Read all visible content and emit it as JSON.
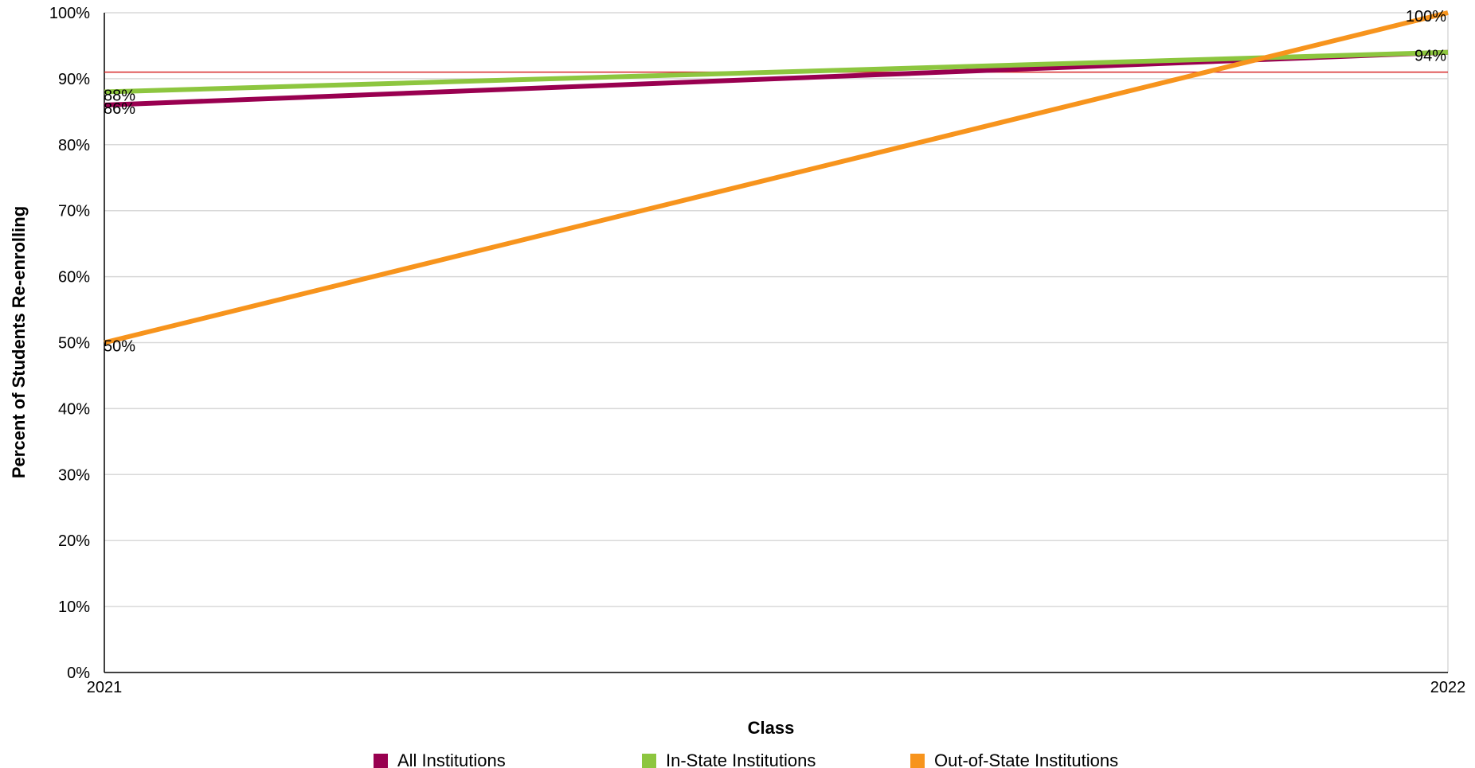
{
  "chart_data": {
    "type": "line",
    "xlabel": "Class",
    "ylabel": "Percent of Students Re-enrolling",
    "x": [
      "2021",
      "2022"
    ],
    "ylim": [
      0,
      100
    ],
    "yticks": [
      0,
      10,
      20,
      30,
      40,
      50,
      60,
      70,
      80,
      90,
      100
    ],
    "ytick_suffix": "%",
    "grid": true,
    "legend_position": "bottom",
    "reference_line": {
      "value": 91,
      "color": "#d62728"
    },
    "series": [
      {
        "name": "All Institutions",
        "color": "#990050",
        "values": [
          86,
          94
        ],
        "labels": [
          "86%",
          ""
        ]
      },
      {
        "name": "In-State Institutions",
        "color": "#8dc63f",
        "values": [
          88,
          94
        ],
        "labels": [
          "88%",
          "94%"
        ]
      },
      {
        "name": "Out-of-State Institutions",
        "color": "#f7941d",
        "values": [
          50,
          100
        ],
        "labels": [
          "50%",
          "100%"
        ]
      }
    ]
  }
}
